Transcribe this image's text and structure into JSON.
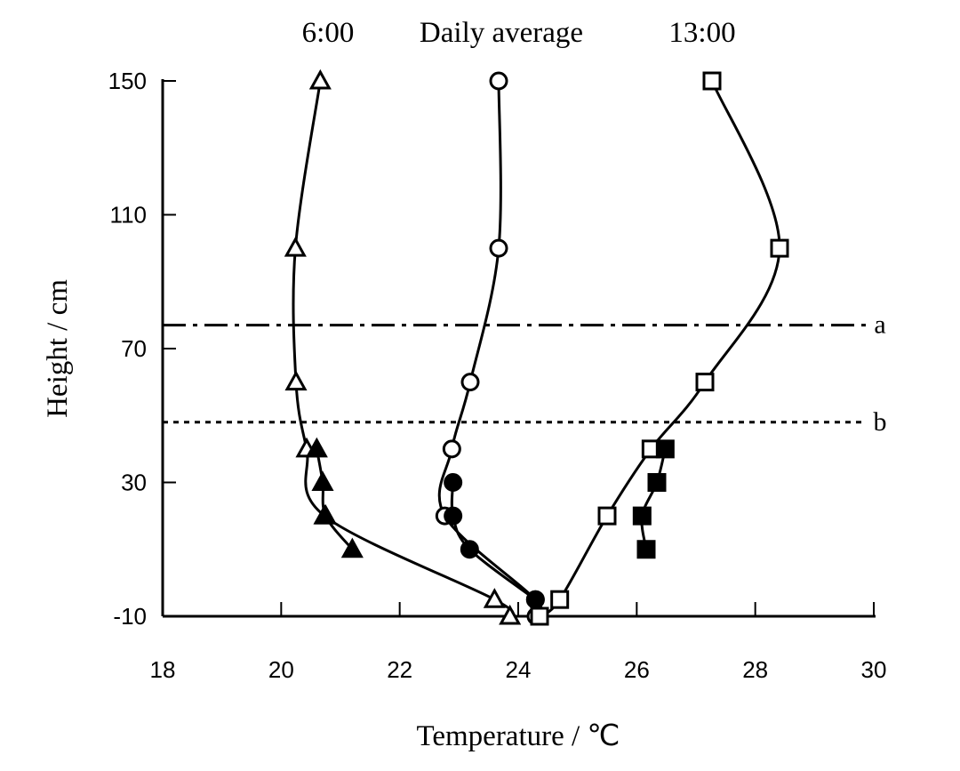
{
  "chart_data": {
    "type": "line",
    "xlabel": "Temperature / ℃",
    "ylabel": "Height / cm",
    "xlim": [
      18,
      30
    ],
    "ylim": [
      -10,
      150
    ],
    "xticks": [
      18,
      20,
      22,
      24,
      26,
      28,
      30
    ],
    "yticks": [
      -10,
      30,
      70,
      110,
      150
    ],
    "grid": false,
    "series_labels": [
      "6:00",
      "Daily average",
      "13:00"
    ],
    "series": [
      {
        "name": "6:00",
        "marker": "open-triangle",
        "points": [
          [
            20.66,
            150
          ],
          [
            20.24,
            100
          ],
          [
            20.25,
            60
          ],
          [
            20.43,
            40
          ],
          [
            20.73,
            20
          ],
          [
            23.6,
            -5
          ],
          [
            23.86,
            -10
          ]
        ]
      },
      {
        "name": "6:00",
        "marker": "filled-triangle",
        "points": [
          [
            20.6,
            40
          ],
          [
            20.7,
            30
          ],
          [
            20.75,
            20
          ],
          [
            21.2,
            10
          ]
        ]
      },
      {
        "name": "Daily average",
        "marker": "open-circle",
        "points": [
          [
            23.67,
            150
          ],
          [
            23.67,
            100
          ],
          [
            23.19,
            60
          ],
          [
            22.88,
            40
          ],
          [
            22.76,
            20
          ],
          [
            24.29,
            -5
          ],
          [
            24.3,
            -10
          ]
        ]
      },
      {
        "name": "Daily average",
        "marker": "filled-circle",
        "points": [
          [
            22.9,
            30
          ],
          [
            22.9,
            20
          ],
          [
            23.18,
            10
          ],
          [
            24.29,
            -5
          ]
        ]
      },
      {
        "name": "13:00",
        "marker": "open-square",
        "points": [
          [
            27.27,
            150
          ],
          [
            28.41,
            100
          ],
          [
            27.15,
            60
          ],
          [
            26.24,
            40
          ],
          [
            25.5,
            20
          ],
          [
            24.7,
            -5
          ],
          [
            24.36,
            -10
          ]
        ]
      },
      {
        "name": "13:00",
        "marker": "filled-square",
        "points": [
          [
            26.48,
            40
          ],
          [
            26.34,
            30
          ],
          [
            26.09,
            20
          ],
          [
            26.16,
            10
          ]
        ]
      }
    ],
    "reference_lines": [
      {
        "label": "a",
        "y": 77,
        "style": "dash-dot"
      },
      {
        "label": "b",
        "y": 48,
        "style": "dotted"
      }
    ]
  }
}
